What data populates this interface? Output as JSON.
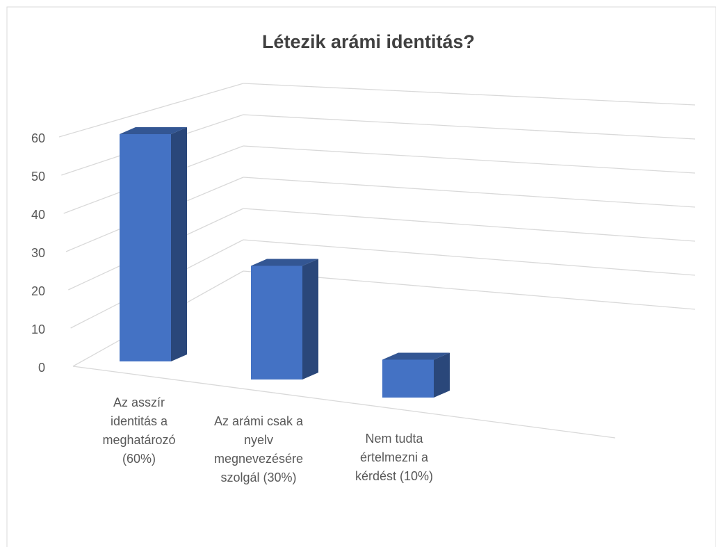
{
  "chart_data": {
    "type": "bar3d",
    "title": "Létezik arámi identitás?",
    "categories": [
      "Az asszír identitás a meghatározó (60%)",
      "Az arámi csak a nyelv megnevezésére szolgál (30%)",
      "Nem tudta értelmezni a kérdést (10%)"
    ],
    "values": [
      60,
      30,
      10
    ],
    "color": "#4472c4",
    "ylim": [
      0,
      60
    ],
    "yticks": [
      0,
      10,
      20,
      30,
      40,
      50,
      60
    ],
    "grid": true
  }
}
